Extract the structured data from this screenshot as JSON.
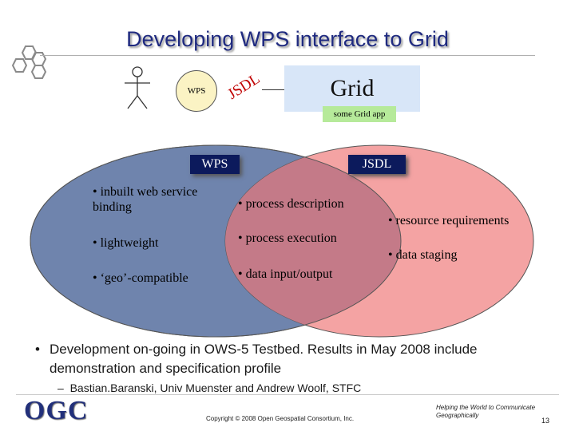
{
  "title": "Developing WPS interface to Grid",
  "top_diagram": {
    "wps_circle_label": "WPS",
    "jsdl_rotated_label": "JSDL",
    "grid_box_label": "Grid",
    "grid_app_label": "some Grid app"
  },
  "venn": {
    "left_set_label": "WPS",
    "right_set_label": "JSDL",
    "left_items": [
      "• inbuilt web service binding",
      "• lightweight",
      "• ‘geo’-compatible"
    ],
    "overlap_items": [
      "• process description",
      "• process execution",
      "• data input/output"
    ],
    "right_items": [
      "• resource requirements",
      "• data staging"
    ],
    "colors": {
      "left": "#6f84ad",
      "right": "#f4a3a3",
      "overlap": "#c47a88",
      "label_box": "#0c1a5c"
    }
  },
  "bullets": {
    "main": "Development on-going in OWS-5 Testbed.  Results in May 2008 include demonstration and specification profile",
    "sub": "Bastian.Baranski, Univ Muenster and Andrew Woolf, STFC"
  },
  "footer": {
    "logo": "OGC",
    "copyright": "Copyright © 2008 Open Geospatial Consortium, Inc.",
    "tagline_line1": "Helping the World to Communicate",
    "tagline_line2": "Geographically",
    "page_number": "13"
  }
}
